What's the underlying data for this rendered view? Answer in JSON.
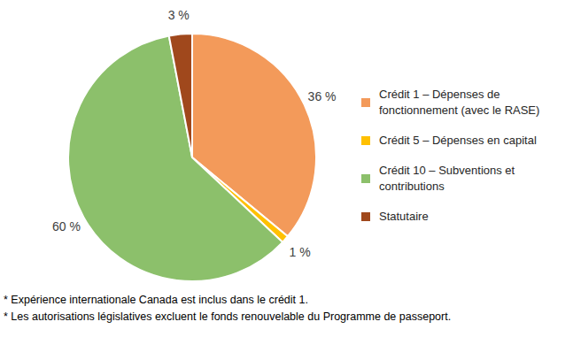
{
  "chart_data": {
    "type": "pie",
    "categories": [
      "Crédit 1 – Dépenses de fonctionnement (avec le RASE)",
      "Crédit 5 – Dépenses en capital",
      "Crédit 10 – Subventions et contributions",
      "Statutaire"
    ],
    "values": [
      36,
      1,
      60,
      3
    ],
    "value_labels": [
      "36 %",
      "1 %",
      "60 %",
      "3 %"
    ],
    "colors": [
      "#f39a5a",
      "#ffc000",
      "#8cc06b",
      "#a0481c"
    ],
    "data_labels": true,
    "legend": "right",
    "notes": [
      "* Expérience internationale Canada est inclus dans le crédit 1.",
      "* Les autorisations législatives excluent le fonds renouvelable du Programme de passeport."
    ]
  }
}
